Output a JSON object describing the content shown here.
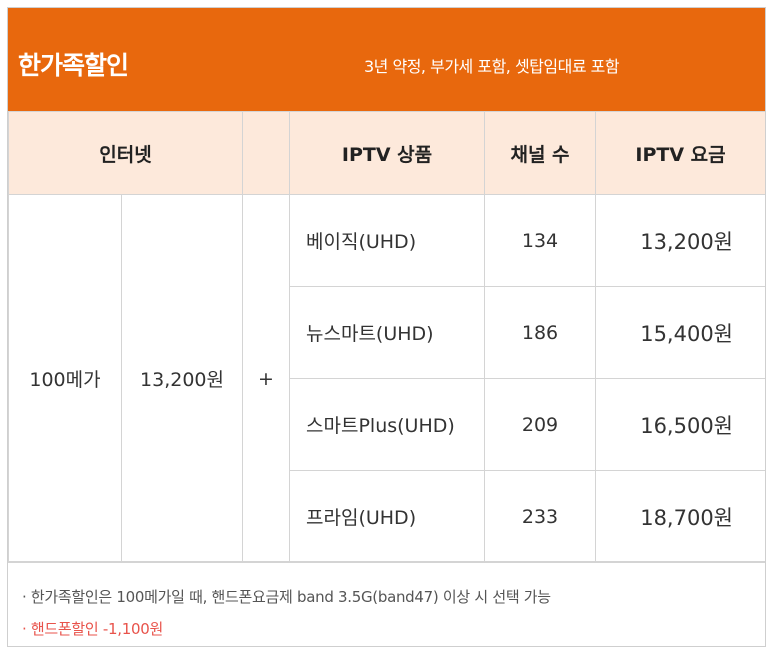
{
  "header": {
    "title": "한가족할인",
    "subtitle": "3년 약정, 부가세 포함, 셋탑임대료 포함"
  },
  "columns": {
    "internet": "인터넷",
    "iptv_product": "IPTV 상품",
    "channels": "채널 수",
    "iptv_fee": "IPTV 요금"
  },
  "internet": {
    "speed": "100메가",
    "price": "13,200원",
    "plus": "+"
  },
  "rows": [
    {
      "product": "베이직(UHD)",
      "channels": "134",
      "price": "13,200원"
    },
    {
      "product": "뉴스마트(UHD)",
      "channels": "186",
      "price": "15,400원"
    },
    {
      "product": "스마트Plus(UHD)",
      "channels": "209",
      "price": "16,500원"
    },
    {
      "product": "프라임(UHD)",
      "channels": "233",
      "price": "18,700원"
    }
  ],
  "notes": {
    "line1": "· 한가족할인은 100메가일 때, 핸드폰요금제 band 3.5G(band47) 이상 시 선택 가능",
    "line2": "· 핸드폰할인 -1,100원"
  },
  "colors": {
    "header_bg": "#e8680d",
    "column_header_bg": "#fde9db",
    "note_highlight": "#e8534b"
  }
}
